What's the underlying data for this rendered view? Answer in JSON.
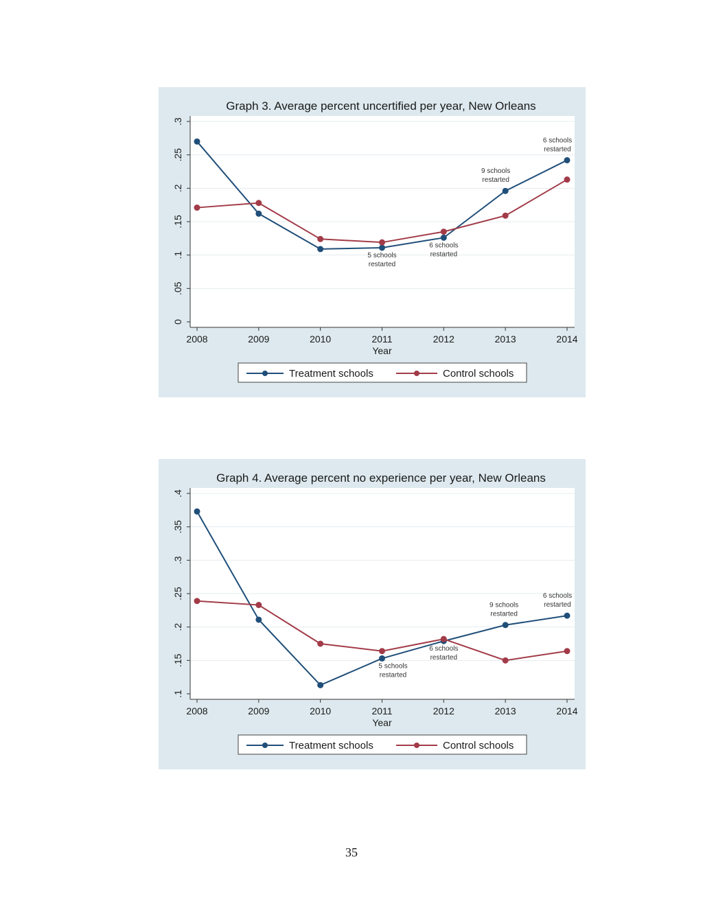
{
  "colors": {
    "background": "#dde9ee",
    "plot_area": "#ffffff",
    "treatment": "#1f4e79",
    "control": "#a23b48",
    "gridline": "#e4ecef",
    "text": "#1a1a1a"
  },
  "page_number": "35",
  "chart_data": [
    {
      "type": "line",
      "title": "Graph 3. Average percent uncertified per year, New Orleans",
      "xlabel": "Year",
      "ylabel": "",
      "x": [
        "2008",
        "2009",
        "2010",
        "2011",
        "2012",
        "2013",
        "2014"
      ],
      "ylim": [
        0,
        0.3
      ],
      "yticks": [
        0,
        0.05,
        0.1,
        0.15,
        0.2,
        0.25,
        0.3
      ],
      "ytick_labels": [
        "0",
        ".05",
        ".1",
        ".15",
        ".2",
        ".25",
        ".3"
      ],
      "series": [
        {
          "name": "Treatment schools",
          "color_key": "treatment",
          "values": [
            0.27,
            0.162,
            0.109,
            0.111,
            0.126,
            0.196,
            0.242
          ]
        },
        {
          "name": "Control schools",
          "color_key": "control",
          "values": [
            0.171,
            0.178,
            0.124,
            0.119,
            0.135,
            0.159,
            0.213
          ]
        }
      ],
      "annotations": [
        {
          "lines": [
            "5 schools",
            "restarted"
          ],
          "x_index": 3,
          "series_index": 0,
          "placement": "below"
        },
        {
          "lines": [
            "6 schools",
            "restarted"
          ],
          "x_index": 4,
          "series_index": 0,
          "placement": "below"
        },
        {
          "lines": [
            "9 schools",
            "restarted"
          ],
          "x_index": 5,
          "series_index": 0,
          "placement": "above-left"
        },
        {
          "lines": [
            "6 schools",
            "restarted"
          ],
          "x_index": 6,
          "series_index": 0,
          "placement": "above-left"
        }
      ],
      "legend": "bottom",
      "grid": true
    },
    {
      "type": "line",
      "title": "Graph 4. Average percent no experience per year, New Orleans",
      "xlabel": "Year",
      "ylabel": "",
      "x": [
        "2008",
        "2009",
        "2010",
        "2011",
        "2012",
        "2013",
        "2014"
      ],
      "ylim": [
        0.1,
        0.4
      ],
      "yticks": [
        0.1,
        0.15,
        0.2,
        0.25,
        0.3,
        0.35,
        0.4
      ],
      "ytick_labels": [
        ".1",
        ".15",
        ".2",
        ".25",
        ".3",
        ".35",
        ".4"
      ],
      "series": [
        {
          "name": "Treatment schools",
          "color_key": "treatment",
          "values": [
            0.373,
            0.211,
            0.113,
            0.153,
            0.179,
            0.203,
            0.217
          ]
        },
        {
          "name": "Control schools",
          "color_key": "control",
          "values": [
            0.239,
            0.233,
            0.175,
            0.164,
            0.182,
            0.15,
            0.164
          ]
        }
      ],
      "annotations": [
        {
          "lines": [
            "5 schools",
            "restarted"
          ],
          "x_index": 3,
          "series_index": 0,
          "placement": "below-right"
        },
        {
          "lines": [
            "6 schools",
            "restarted"
          ],
          "x_index": 4,
          "series_index": 0,
          "placement": "below"
        },
        {
          "lines": [
            "9 schools",
            "restarted"
          ],
          "x_index": 5,
          "series_index": 0,
          "placement": "above"
        },
        {
          "lines": [
            "6 schools",
            "restarted"
          ],
          "x_index": 6,
          "series_index": 0,
          "placement": "above-left"
        }
      ],
      "legend": "bottom",
      "grid": true
    }
  ]
}
